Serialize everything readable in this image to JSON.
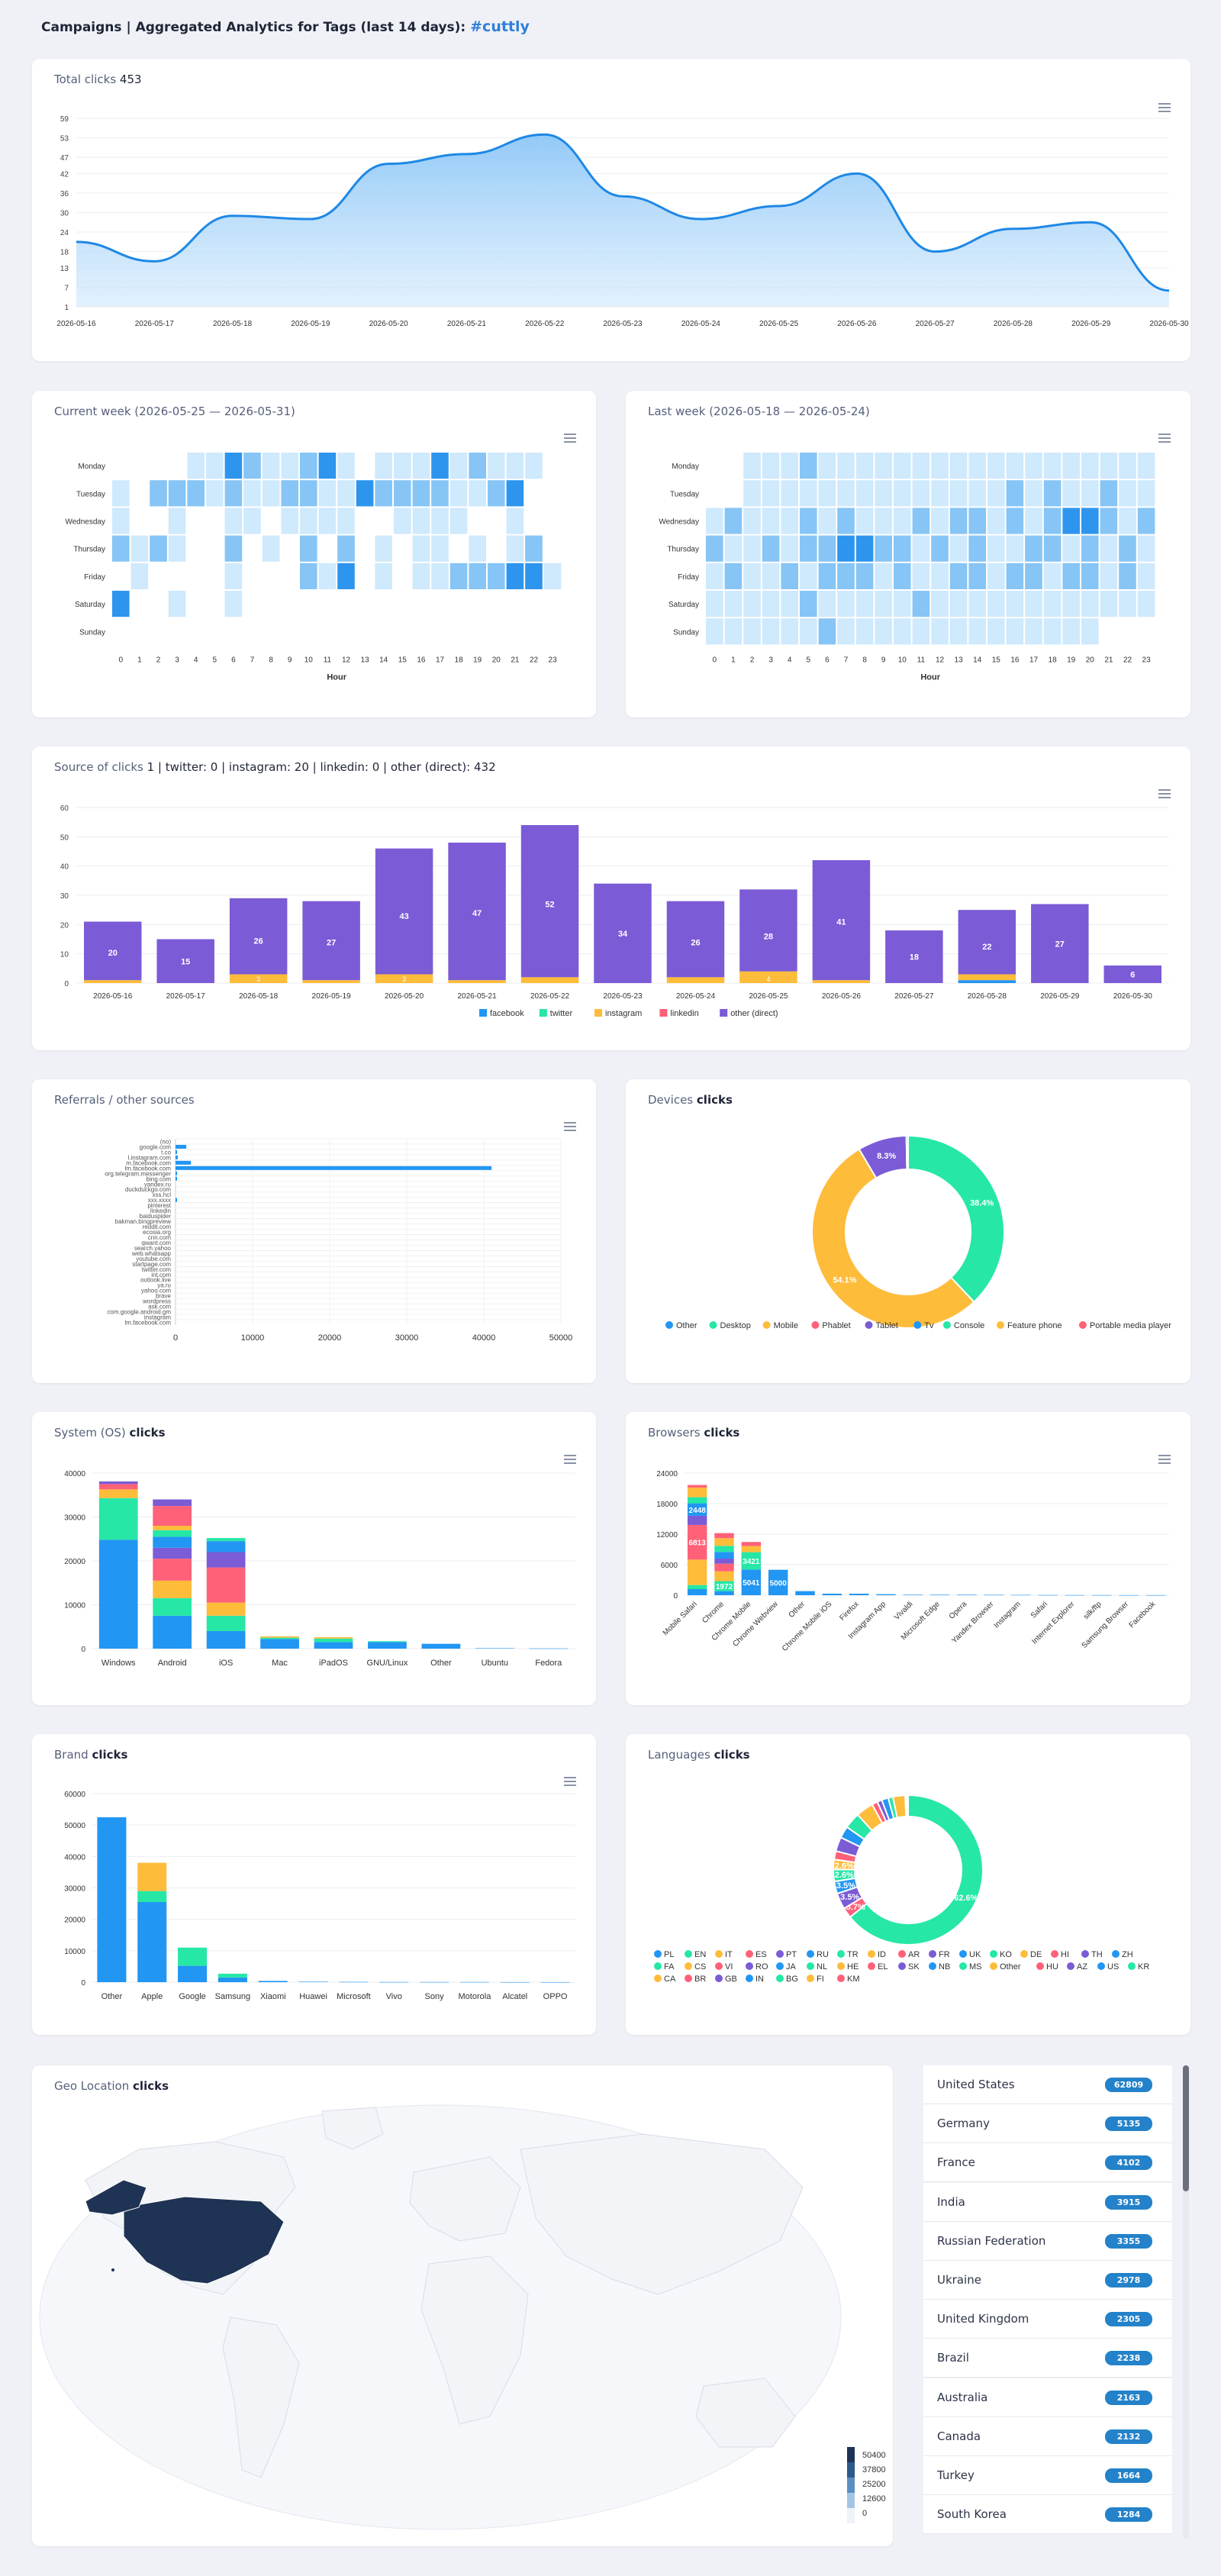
{
  "header": {
    "prefix": "Campaigns | Aggregated Analytics for Tags (last 14 days):",
    "tag": "#cuttly"
  },
  "colors": {
    "blue": "#2196f3",
    "purple": "#7b5bd6",
    "green": "#26e7a6",
    "orange": "#febc3b",
    "red": "#ff6178",
    "violet": "#8b75d7",
    "navy": "#1f3354",
    "badge": "#2382c9"
  },
  "total": {
    "label": "Total clicks",
    "value": "453",
    "chart_data": {
      "type": "area",
      "x": [
        "2026-05-16",
        "2026-05-17",
        "2026-05-18",
        "2026-05-19",
        "2026-05-20",
        "2026-05-21",
        "2026-05-22",
        "2026-05-23",
        "2026-05-24",
        "2026-05-25",
        "2026-05-26",
        "2026-05-27",
        "2026-05-28",
        "2026-05-29",
        "2026-05-30"
      ],
      "values": [
        21,
        15,
        29,
        28,
        45,
        48,
        54,
        35,
        28,
        32,
        42,
        18,
        25,
        27,
        6
      ],
      "yticks": [
        1,
        7,
        13,
        18,
        24,
        30,
        36,
        42,
        47,
        53,
        59
      ],
      "ylim": [
        1,
        59
      ]
    }
  },
  "current_week": {
    "title": "Current week (2026-05-25 — 2026-05-31)",
    "xlabel": "Hour"
  },
  "last_week": {
    "title": "Last week (2026-05-18 — 2026-05-24)",
    "xlabel": "Hour"
  },
  "heatmap": {
    "days": [
      "Monday",
      "Tuesday",
      "Wednesday",
      "Thursday",
      "Friday",
      "Saturday",
      "Sunday"
    ],
    "hours": [
      "0",
      "1",
      "2",
      "3",
      "4",
      "5",
      "6",
      "7",
      "8",
      "9",
      "10",
      "11",
      "12",
      "13",
      "14",
      "15",
      "16",
      "17",
      "18",
      "19",
      "20",
      "21",
      "22",
      "23"
    ],
    "current": [
      [
        0,
        0,
        0,
        0,
        1,
        1,
        3,
        2,
        1,
        1,
        2,
        3,
        1,
        0,
        1,
        1,
        1,
        3,
        1,
        2,
        1,
        1,
        1,
        0
      ],
      [
        1,
        0,
        2,
        2,
        2,
        1,
        2,
        1,
        1,
        2,
        2,
        1,
        1,
        3,
        2,
        2,
        2,
        2,
        1,
        1,
        2,
        3,
        0,
        0
      ],
      [
        1,
        0,
        0,
        1,
        0,
        0,
        1,
        1,
        0,
        1,
        1,
        1,
        1,
        0,
        0,
        1,
        1,
        1,
        1,
        0,
        0,
        1,
        0,
        0
      ],
      [
        2,
        1,
        2,
        1,
        0,
        0,
        2,
        0,
        1,
        0,
        2,
        0,
        2,
        0,
        1,
        0,
        1,
        1,
        0,
        1,
        0,
        1,
        2,
        0
      ],
      [
        0,
        1,
        0,
        0,
        0,
        0,
        1,
        0,
        0,
        0,
        2,
        1,
        3,
        0,
        1,
        0,
        1,
        1,
        2,
        2,
        2,
        3,
        3,
        1
      ],
      [
        3,
        0,
        0,
        1,
        0,
        0,
        1,
        0,
        0,
        0,
        0,
        0,
        0,
        0,
        0,
        0,
        0,
        0,
        0,
        0,
        0,
        0,
        0,
        0
      ],
      [
        0,
        0,
        0,
        0,
        0,
        0,
        0,
        0,
        0,
        0,
        0,
        0,
        0,
        0,
        0,
        0,
        0,
        0,
        0,
        0,
        0,
        0,
        0,
        0
      ]
    ],
    "last": [
      [
        0,
        0,
        1,
        1,
        1,
        2,
        1,
        1,
        1,
        1,
        1,
        1,
        1,
        1,
        1,
        1,
        1,
        1,
        1,
        1,
        1,
        1,
        1,
        1
      ],
      [
        0,
        0,
        1,
        1,
        1,
        1,
        1,
        1,
        1,
        1,
        1,
        1,
        1,
        1,
        1,
        1,
        2,
        1,
        2,
        1,
        1,
        2,
        1,
        1
      ],
      [
        1,
        2,
        1,
        1,
        1,
        2,
        1,
        2,
        1,
        1,
        1,
        2,
        1,
        2,
        2,
        1,
        2,
        1,
        2,
        3,
        3,
        2,
        1,
        2
      ],
      [
        2,
        1,
        1,
        2,
        1,
        2,
        2,
        3,
        3,
        2,
        2,
        1,
        2,
        1,
        2,
        1,
        1,
        2,
        2,
        1,
        2,
        1,
        2,
        1
      ],
      [
        1,
        2,
        1,
        1,
        2,
        1,
        2,
        2,
        2,
        1,
        2,
        1,
        1,
        2,
        2,
        1,
        2,
        2,
        1,
        2,
        2,
        1,
        2,
        1
      ],
      [
        1,
        1,
        1,
        1,
        1,
        2,
        1,
        1,
        1,
        1,
        1,
        2,
        1,
        1,
        1,
        1,
        1,
        1,
        1,
        1,
        1,
        1,
        1,
        1
      ],
      [
        1,
        1,
        1,
        1,
        1,
        1,
        2,
        1,
        1,
        1,
        1,
        1,
        1,
        1,
        1,
        1,
        1,
        1,
        1,
        1,
        1,
        0,
        0,
        0
      ]
    ]
  },
  "sources": {
    "label": "Source of clicks",
    "summary": "1 | twitter: 0 | instagram: 20 | linkedin: 0 | other (direct): 432",
    "chart_data": {
      "type": "bar",
      "categories": [
        "2026-05-16",
        "2026-05-17",
        "2026-05-18",
        "2026-05-19",
        "2026-05-20",
        "2026-05-21",
        "2026-05-22",
        "2026-05-23",
        "2026-05-24",
        "2026-05-25",
        "2026-05-26",
        "2026-05-27",
        "2026-05-28",
        "2026-05-29",
        "2026-05-30"
      ],
      "series": [
        {
          "name": "facebook",
          "values": [
            0,
            0,
            0,
            0,
            0,
            0,
            0,
            0,
            0,
            0,
            0,
            0,
            1,
            0,
            0
          ]
        },
        {
          "name": "twitter",
          "values": [
            0,
            0,
            0,
            0,
            0,
            0,
            0,
            0,
            0,
            0,
            0,
            0,
            0,
            0,
            0
          ]
        },
        {
          "name": "instagram",
          "values": [
            1,
            0,
            3,
            1,
            3,
            1,
            2,
            0,
            2,
            4,
            1,
            0,
            2,
            0,
            0
          ]
        },
        {
          "name": "linkedin",
          "values": [
            0,
            0,
            0,
            0,
            0,
            0,
            0,
            0,
            0,
            0,
            0,
            0,
            0,
            0,
            0
          ]
        },
        {
          "name": "other (direct)",
          "values": [
            20,
            15,
            26,
            27,
            43,
            47,
            52,
            34,
            26,
            28,
            41,
            18,
            22,
            27,
            6
          ]
        }
      ],
      "labels": [
        "20",
        "15",
        "26",
        "27",
        "43",
        "47",
        "52",
        "34",
        "26",
        "28",
        "41",
        "18",
        "22",
        "27",
        "6"
      ],
      "small_labels": [
        "",
        "",
        "3",
        "",
        "3",
        "",
        "",
        "",
        "",
        "4",
        "",
        "",
        "",
        "",
        ""
      ],
      "yticks": [
        0,
        10,
        20,
        30,
        40,
        50,
        60
      ],
      "ylim": [
        0,
        60
      ]
    }
  },
  "referrals": {
    "title": "Referrals / other sources",
    "chart_data": {
      "type": "bar",
      "orientation": "horizontal",
      "categories": [
        "(no)",
        "google.com",
        "t.co",
        "l.instagram.com",
        "m.facebook.com",
        "lm.facebook.com",
        "org.telegram.messenger",
        "bing.com",
        "yandex.ru",
        "duckduckgo.com",
        "xss.hcl",
        "xxx.xxxx",
        "pinterest",
        "linkedin",
        "baiduspider",
        "bakman.bingpreview",
        "reddit.com",
        "ecosia.org",
        "cnn.com",
        "qwant.com",
        "search.yahoo",
        "web.whatsapp",
        "youtube.com",
        "startpage.com",
        "twitter.com",
        "int.com",
        "outlook.live",
        "ya.ru",
        "yahoo.com",
        "brave",
        "wordpress",
        "ask.com",
        "com.google.android.gm",
        "instagram",
        "lm.facebook.com"
      ],
      "values": [
        0,
        1400,
        200,
        300,
        2000,
        41000,
        200,
        100,
        0,
        0,
        0,
        50,
        0,
        0,
        0,
        0,
        0,
        0,
        0,
        0,
        0,
        0,
        0,
        0,
        0,
        0,
        0,
        0,
        0,
        0,
        0,
        0,
        0,
        0,
        0
      ],
      "xticks": [
        "0",
        "10000",
        "20000",
        "30000",
        "40000",
        "50000"
      ],
      "xlim": [
        0,
        50000
      ]
    }
  },
  "devices": {
    "title": "Devices",
    "suffix": "clicks",
    "chart_data": {
      "type": "pie",
      "labels": [
        "Other",
        "Desktop",
        "Mobile",
        "Phablet",
        "Tablet",
        "Tv",
        "Console",
        "Feature phone",
        "Portable media player"
      ],
      "values": [
        0.3,
        38.4,
        54.1,
        0.1,
        8.3,
        0,
        0,
        0,
        0
      ],
      "shown": [
        "38.4%",
        "54.1%",
        "8.3%"
      ],
      "colors": [
        "#2196f3",
        "#26e7a6",
        "#febc3b",
        "#ff6178",
        "#7b5bd6",
        "#2196f3",
        "#26e7a6",
        "#febc3b",
        "#ff6178"
      ]
    }
  },
  "os": {
    "title": "System (OS)",
    "suffix": "clicks",
    "chart_data": {
      "type": "bar",
      "stacked": true,
      "categories": [
        "Windows",
        "Android",
        "iOS",
        "Mac",
        "iPadOS",
        "GNU/Linux",
        "Other",
        "Ubuntu",
        "Fedora"
      ],
      "stacks": [
        [
          24800,
          9500,
          2000,
          1200,
          600
        ],
        [
          7500,
          4000,
          4000,
          5000,
          2500,
          2500,
          1500,
          1000,
          4500,
          1500
        ],
        [
          4000,
          3500,
          3000,
          8000,
          3500,
          2500,
          700
        ],
        [
          2200,
          300,
          300
        ],
        [
          1500,
          800,
          300
        ],
        [
          1500,
          200
        ],
        [
          1100
        ],
        [
          100
        ],
        [
          50
        ]
      ],
      "yticks": [
        0,
        10000,
        20000,
        30000,
        40000
      ],
      "ylim": [
        0,
        40000
      ]
    }
  },
  "browsers": {
    "title": "Browsers",
    "suffix": "clicks",
    "chart_data": {
      "type": "bar",
      "stacked": true,
      "categories": [
        "Mobile Safari",
        "Chrome",
        "Chrome Mobile",
        "Chrome Webview",
        "Other",
        "Chrome Mobile iOS",
        "Firefox",
        "Instagram App",
        "Vivaldi",
        "Microsoft Edge",
        "Opera",
        "Yandex Browser",
        "Instagram",
        "Safari",
        "Internet Explorer",
        "silk/ftp",
        "Samsung Browser",
        "Facebook"
      ],
      "stacks": [
        [
          1200,
          800,
          5000,
          6813,
          1800,
          2448,
          1200,
          1900,
          500
        ],
        [
          800,
          1972,
          1928,
          1500,
          1000,
          1300,
          1200,
          1500,
          1000
        ],
        [
          5041,
          3421,
          1200,
          800
        ],
        [
          5000
        ],
        [
          800
        ],
        [
          300
        ],
        [
          300
        ],
        [
          200
        ],
        [
          100
        ],
        [
          100
        ],
        [
          100
        ],
        [
          80
        ],
        [
          60
        ],
        [
          40
        ],
        [
          30
        ],
        [
          20
        ],
        [
          10
        ],
        [
          10
        ]
      ],
      "labels": [
        [
          "",
          "",
          "",
          "6813",
          "",
          "2448",
          "",
          "",
          ""
        ],
        [
          "",
          "1972",
          "",
          "",
          "",
          "",
          "",
          "",
          ""
        ],
        [
          "5041",
          "3421",
          "",
          ""
        ],
        [
          "5000"
        ]
      ],
      "yticks": [
        0,
        6000,
        12000,
        18000,
        24000
      ],
      "ylim": [
        0,
        24000
      ]
    }
  },
  "brand": {
    "title": "Brand",
    "suffix": "clicks",
    "chart_data": {
      "type": "bar",
      "stacked": true,
      "categories": [
        "Other",
        "Apple",
        "Google",
        "Samsung",
        "Xiaomi",
        "Huawei",
        "Microsoft",
        "Vivo",
        "Sony",
        "Motorola",
        "Alcatel",
        "OPPO"
      ],
      "stacks": [
        [
          52500
        ],
        [
          25500,
          3500,
          9000
        ],
        [
          5200,
          5800
        ],
        [
          1500,
          1200
        ],
        [
          400
        ],
        [
          150
        ],
        [
          100
        ],
        [
          50
        ],
        [
          50
        ],
        [
          40
        ],
        [
          30
        ],
        [
          20
        ]
      ],
      "yticks": [
        0,
        10000,
        20000,
        30000,
        40000,
        50000,
        60000
      ],
      "ylim": [
        0,
        60000
      ]
    }
  },
  "languages": {
    "title": "Languages",
    "suffix": "clicks",
    "chart_data": {
      "type": "pie",
      "values": [
        62.6,
        2.2,
        3.4,
        2.6,
        2.5,
        2.1,
        1.8,
        3.0,
        2.5,
        3.4,
        3.7,
        1.2,
        1.0,
        1.4,
        1.0,
        2.6,
        0.3,
        0.1,
        0.1,
        0.1
      ],
      "shown": [
        "62.6%",
        "5.7%",
        "3.5%",
        "3.5%",
        "2.6%",
        "2.6%"
      ],
      "colors": [
        "#26e7a6",
        "#ff6178",
        "#7b5bd6",
        "#2196f3",
        "#26e7a6",
        "#febc3b",
        "#ff6178",
        "#7b5bd6",
        "#2196f3",
        "#26e7a6",
        "#febc3b",
        "#ff6178",
        "#7b5bd6",
        "#2196f3",
        "#26e7a6",
        "#febc3b",
        "#ff6178",
        "#7b5bd6",
        "#2196f3",
        "#26e7a6"
      ],
      "legend": [
        "PL",
        "EN",
        "IT",
        "ES",
        "PT",
        "RU",
        "TR",
        "ID",
        "AR",
        "FR",
        "UK",
        "KO",
        "DE",
        "HI",
        "TH",
        "ZH",
        "FA",
        "CS",
        "VI",
        "RO",
        "JA",
        "NL",
        "HE",
        "EL",
        "SK",
        "NB",
        "MS",
        "Other",
        "HU",
        "AZ",
        "US",
        "KR",
        "CA",
        "BR",
        "GB",
        "IN",
        "BG",
        "FI",
        "KM"
      ]
    }
  },
  "geo": {
    "title": "Geo Location",
    "suffix": "clicks",
    "scale": [
      "50400",
      "37800",
      "25200",
      "12600",
      "0"
    ]
  },
  "countries": [
    {
      "name": "United States",
      "count": "62809"
    },
    {
      "name": "Germany",
      "count": "5135"
    },
    {
      "name": "France",
      "count": "4102"
    },
    {
      "name": "India",
      "count": "3915"
    },
    {
      "name": "Russian Federation",
      "count": "3355"
    },
    {
      "name": "Ukraine",
      "count": "2978"
    },
    {
      "name": "United Kingdom",
      "count": "2305"
    },
    {
      "name": "Brazil",
      "count": "2238"
    },
    {
      "name": "Australia",
      "count": "2163"
    },
    {
      "name": "Canada",
      "count": "2132"
    },
    {
      "name": "Turkey",
      "count": "1664"
    },
    {
      "name": "South Korea",
      "count": "1284"
    }
  ]
}
